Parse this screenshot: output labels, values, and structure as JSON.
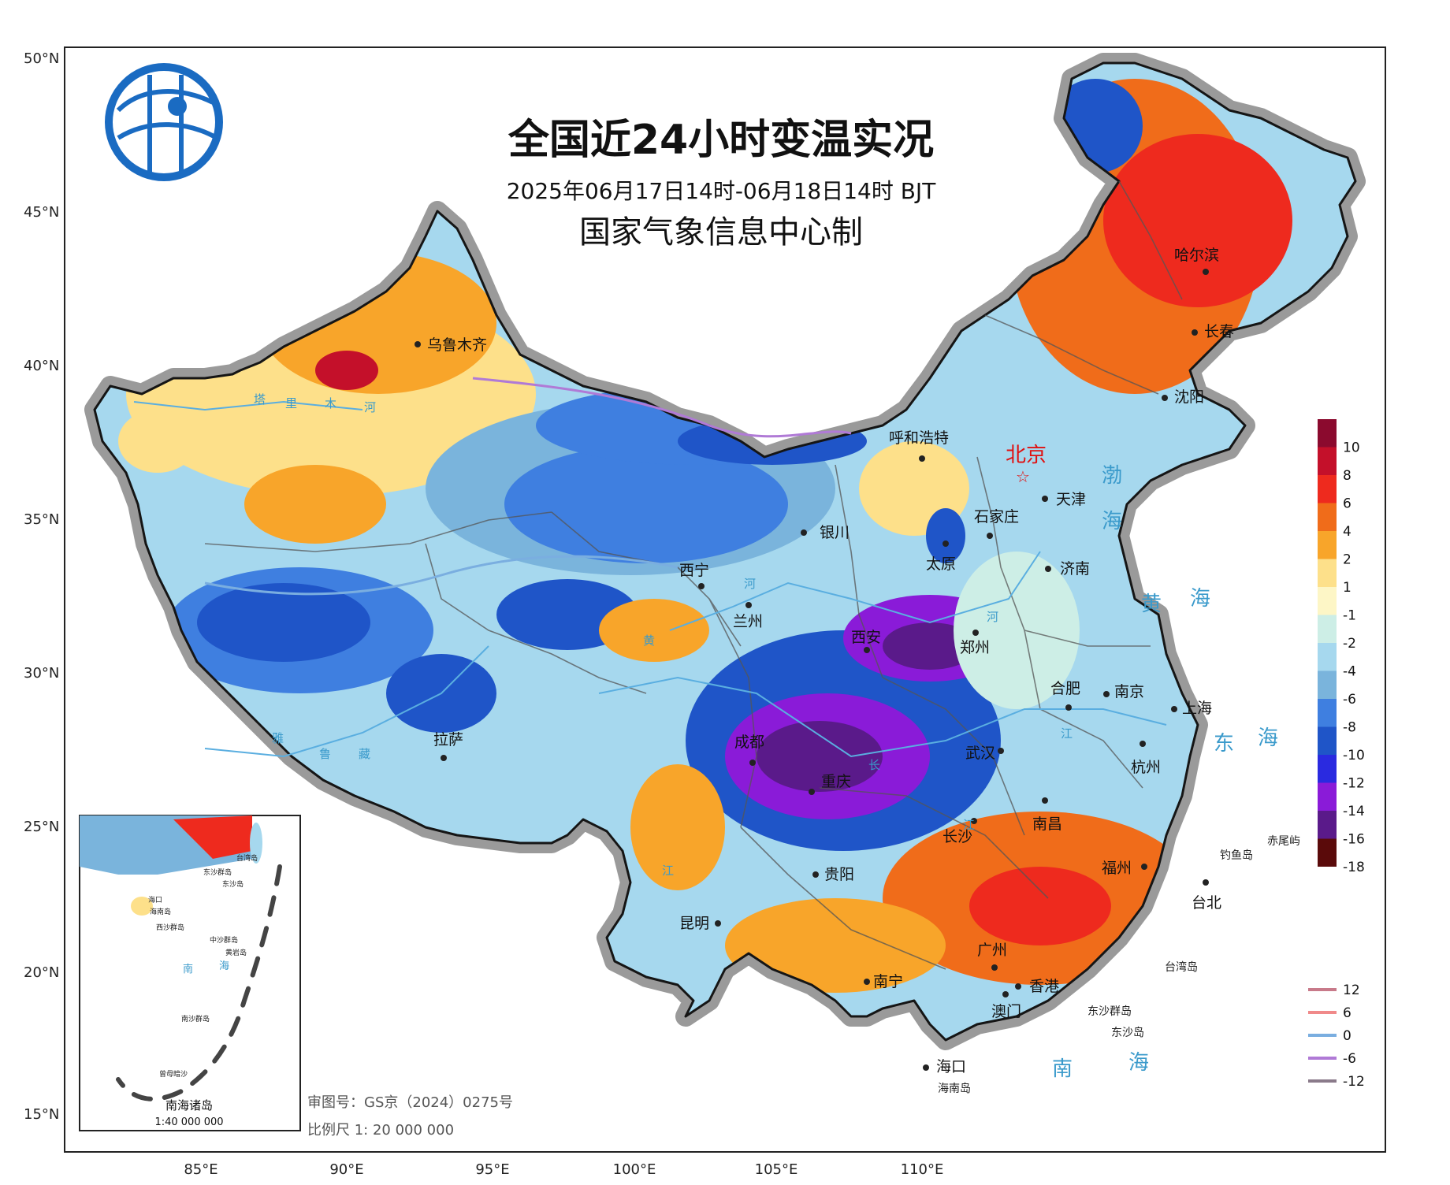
{
  "map": {
    "title": "全国近24小时变温实况",
    "time_range": "2025年06月17日14时-06月18日14时 BJT",
    "producer": "国家气象信息中心制",
    "approval": "审图号：GS京（2024）0275号",
    "scale": "比例尺 1: 20 000 000",
    "inset_title": "南海诸岛",
    "inset_scale": "1:40 000 000",
    "capital": "北京",
    "lat_labels": [
      "50°N",
      "45°N",
      "40°N",
      "35°N",
      "30°N",
      "25°N",
      "20°N",
      "15°N"
    ],
    "lon_labels": [
      "85°E",
      "90°E",
      "95°E",
      "100°E",
      "105°E",
      "110°E"
    ],
    "cities": [
      "乌鲁木齐",
      "呼和浩特",
      "天津",
      "石家庄",
      "太原",
      "济南",
      "银川",
      "西宁",
      "兰州",
      "西安",
      "郑州",
      "合肥",
      "南京",
      "上海",
      "杭州",
      "武汉",
      "成都",
      "重庆",
      "拉萨",
      "长沙",
      "南昌",
      "贵阳",
      "福州",
      "台北",
      "昆明",
      "南宁",
      "广州",
      "香港",
      "澳门",
      "海口",
      "哈尔滨",
      "长春",
      "沈阳"
    ],
    "small_labels": [
      "台湾岛",
      "钓鱼岛",
      "赤尾屿",
      "东沙群岛",
      "东沙岛",
      "海南岛"
    ],
    "inset_labels": [
      "海口",
      "海南岛",
      "东沙群岛",
      "东沙岛",
      "西沙群岛",
      "中沙群岛",
      "黄岩岛",
      "南沙群岛",
      "曾母暗沙",
      "台湾岛"
    ],
    "water_labels": [
      "渤",
      "海",
      "黄",
      "海",
      "东",
      "海",
      "南",
      "海"
    ],
    "river_chars": [
      "塔",
      "里",
      "木",
      "河",
      "黄",
      "河",
      "河",
      "长",
      "江",
      "江",
      "江",
      "雅",
      "鲁",
      "藏"
    ]
  },
  "legend": {
    "fill_values": [
      "10",
      "8",
      "6",
      "4",
      "2",
      "1",
      "-1",
      "-2",
      "-4",
      "-6",
      "-8",
      "-10",
      "-12",
      "-14",
      "-16",
      "-18"
    ],
    "fill_colors": [
      "#8b0a2e",
      "#c4102a",
      "#ee2a1e",
      "#f06c1a",
      "#f8a52a",
      "#fde08a",
      "#fdf6c6",
      "#cdeee6",
      "#a6d8ee",
      "#7ab4dc",
      "#3f7fe0",
      "#1f55c8",
      "#2a2ae0",
      "#8a1bd8",
      "#5a1a8a",
      "#5a0a0a"
    ],
    "line_values": [
      "12",
      "6",
      "0",
      "-6",
      "-12"
    ],
    "line_colors": [
      "#c87a8a",
      "#f08a8a",
      "#7aaee0",
      "#b07ad6",
      "#8a7a8a"
    ]
  }
}
